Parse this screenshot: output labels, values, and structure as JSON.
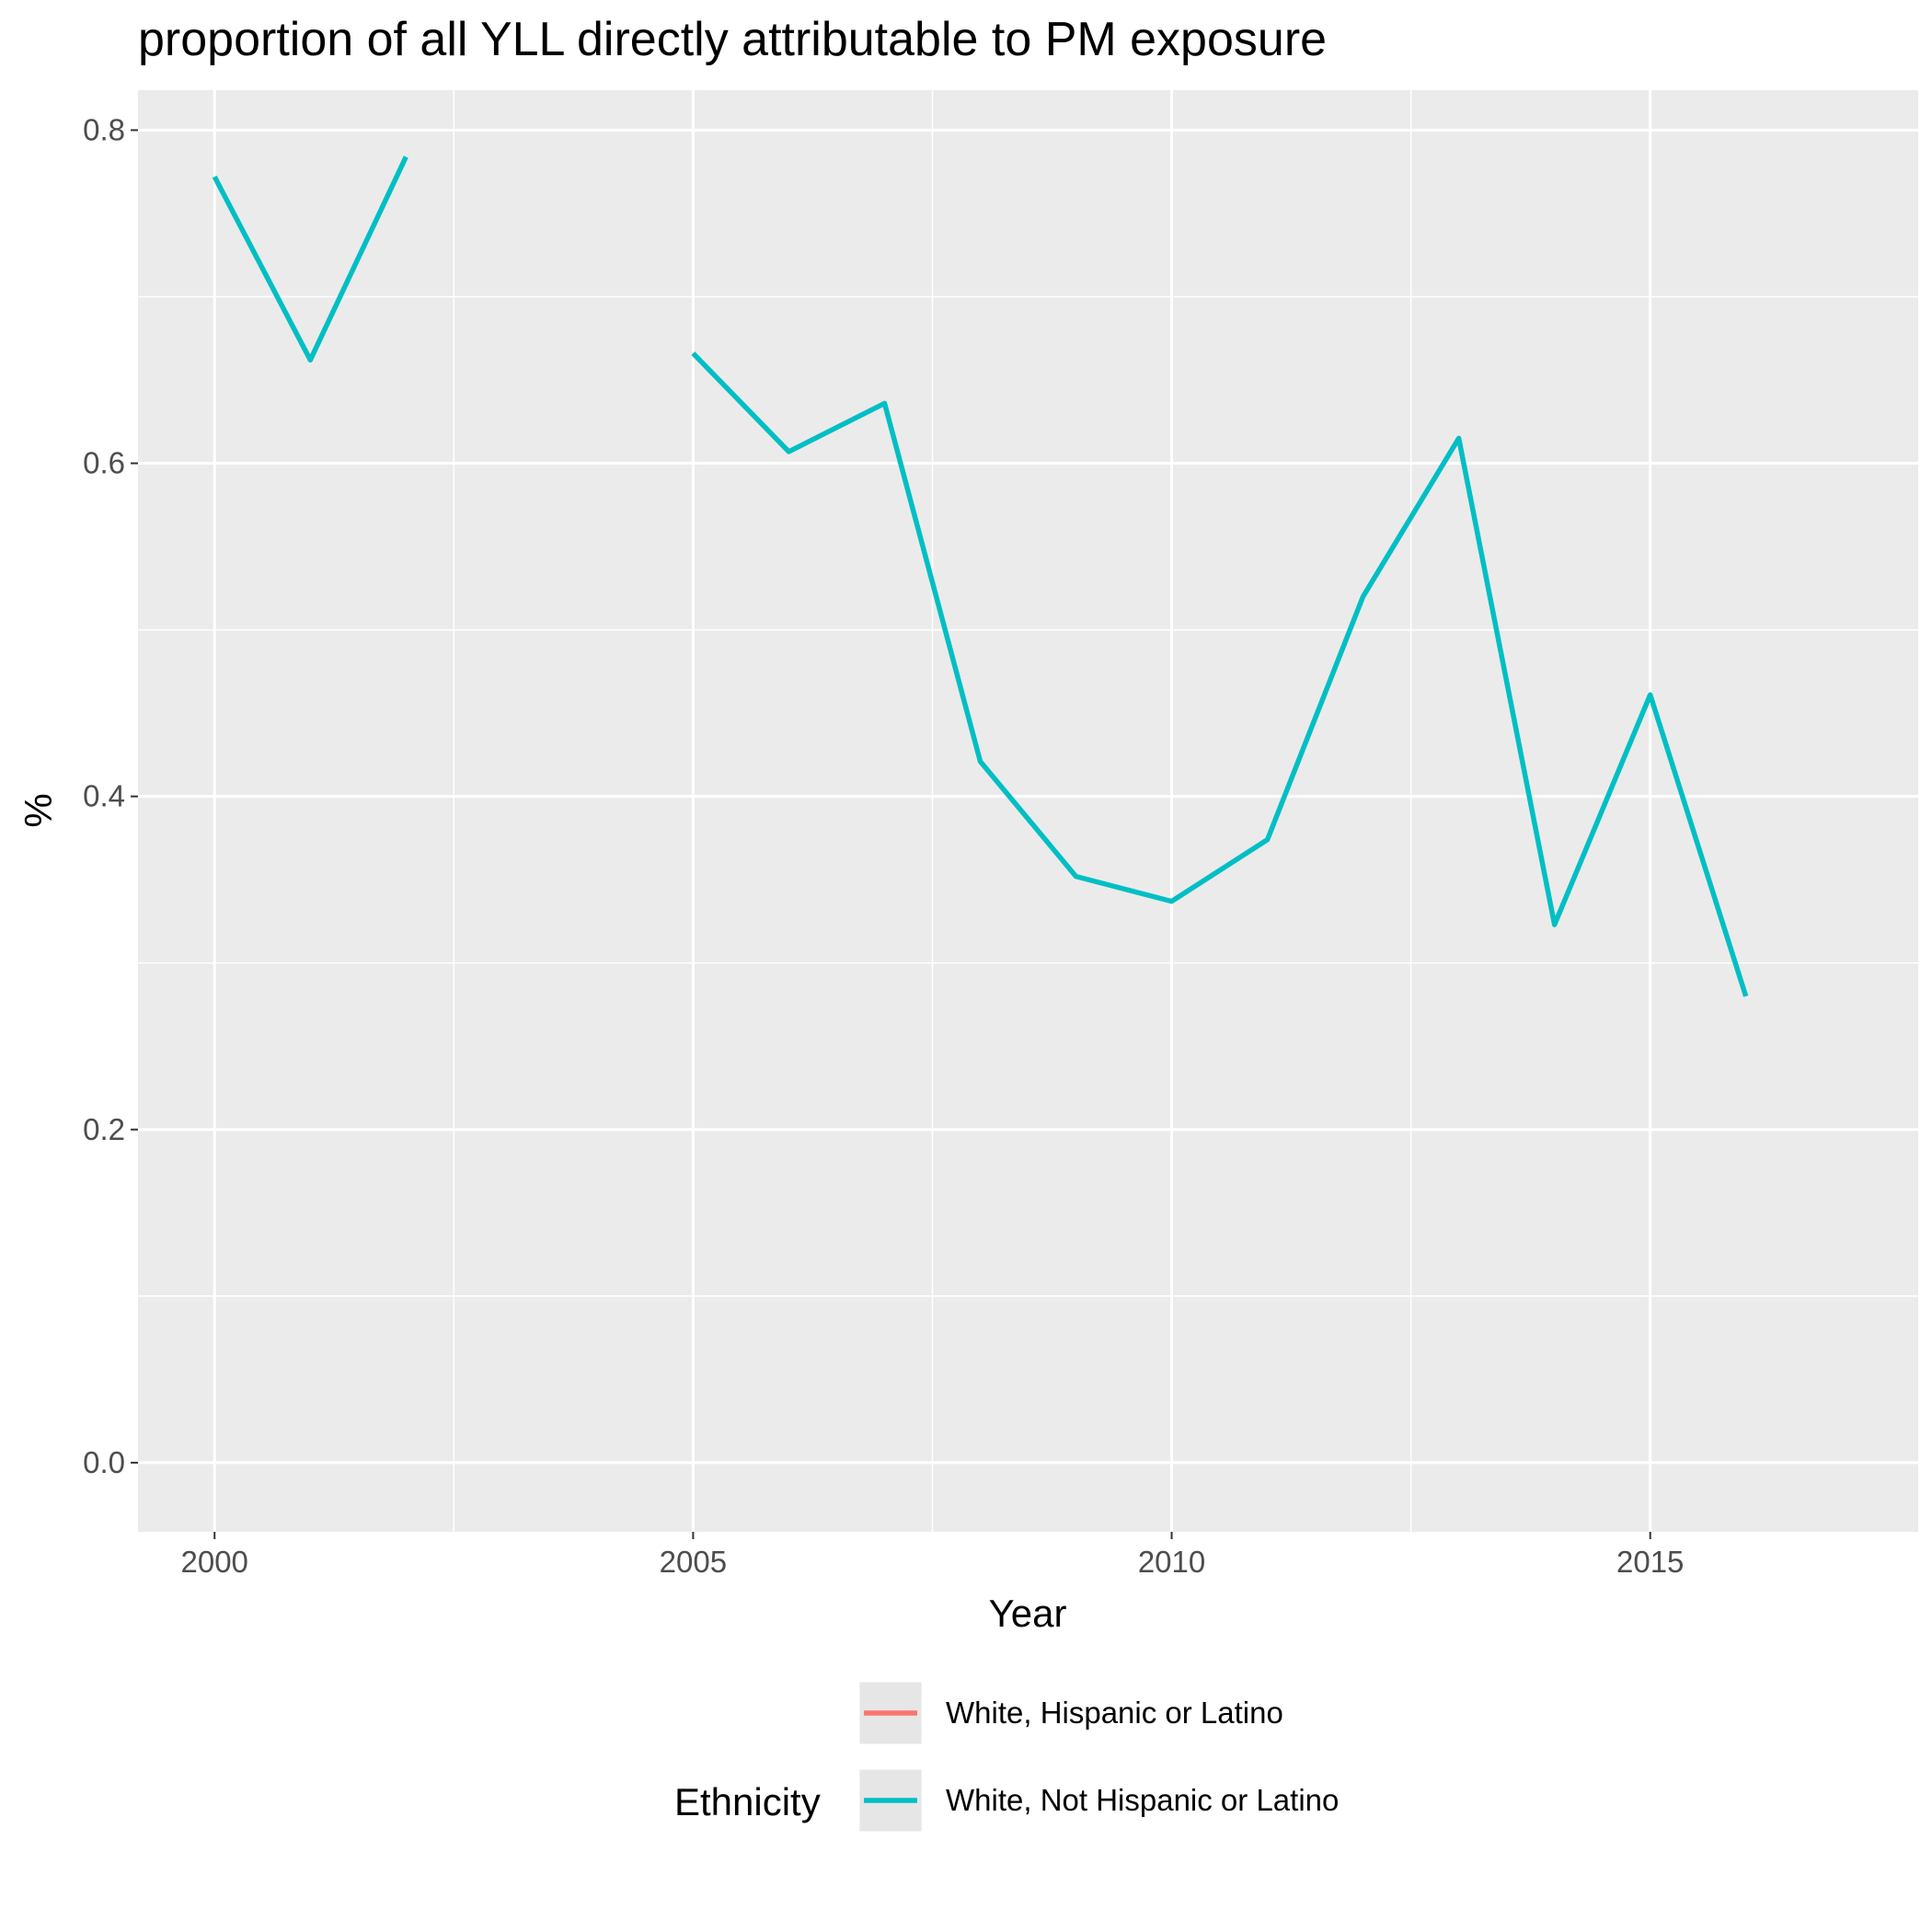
{
  "chart_data": {
    "type": "line",
    "title": "proportion of all YLL directly attributable to PM exposure",
    "xlabel": "Year",
    "ylabel": "%",
    "xlim": [
      1999.2,
      2017.8
    ],
    "ylim": [
      -0.0415,
      0.824
    ],
    "x_ticks": [
      2000,
      2005,
      2010,
      2015
    ],
    "x_tick_labels": [
      "2000",
      "2005",
      "2010",
      "2015"
    ],
    "y_ticks": [
      0.0,
      0.2,
      0.4,
      0.6,
      0.8
    ],
    "y_tick_labels": [
      "0.0",
      "0.2",
      "0.4",
      "0.6",
      "0.8"
    ],
    "grid": true,
    "legend_position": "bottom",
    "legend_title": "Ethnicity",
    "series": [
      {
        "name": "White, Hispanic or Latino",
        "color": "#F8766D",
        "x": [],
        "y": []
      },
      {
        "name": "White, Not Hispanic or Latino",
        "color": "#00BFC4",
        "x": [
          2000,
          2001,
          2002,
          2005,
          2006,
          2007,
          2008,
          2009,
          2010,
          2011,
          2012,
          2013,
          2014,
          2015,
          2016
        ],
        "y": [
          0.772,
          0.662,
          0.784,
          0.666,
          0.607,
          0.636,
          0.421,
          0.352,
          0.337,
          0.374,
          0.52,
          0.615,
          0.323,
          0.461,
          0.28
        ]
      }
    ]
  }
}
